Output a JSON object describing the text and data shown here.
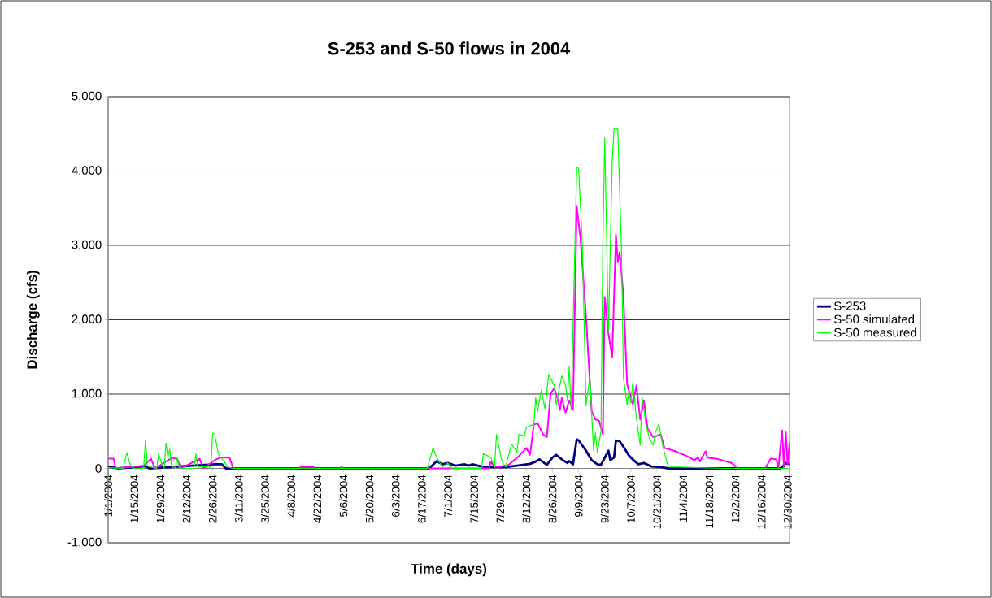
{
  "chart_data": {
    "type": "line",
    "title": "S-253 and S-50 flows in 2004",
    "xlabel": "Time (days)",
    "ylabel": "Discharge (cfs)",
    "xlim": [
      "2004-01-01",
      "2004-12-31"
    ],
    "xticks": [
      {
        "value": "2004-01-01",
        "label": "1/1/2004"
      },
      {
        "value": "2004-01-15",
        "label": "1/15/2004"
      },
      {
        "value": "2004-01-29",
        "label": "1/29/2004"
      },
      {
        "value": "2004-02-12",
        "label": "2/12/2004"
      },
      {
        "value": "2004-02-26",
        "label": "2/26/2004"
      },
      {
        "value": "2004-03-11",
        "label": "3/11/2004"
      },
      {
        "value": "2004-03-25",
        "label": "3/25/2004"
      },
      {
        "value": "2004-04-08",
        "label": "4/8/2004"
      },
      {
        "value": "2004-04-22",
        "label": "4/22/2004"
      },
      {
        "value": "2004-05-06",
        "label": "5/6/2004"
      },
      {
        "value": "2004-05-20",
        "label": "5/20/2004"
      },
      {
        "value": "2004-06-03",
        "label": "6/3/2004"
      },
      {
        "value": "2004-06-17",
        "label": "6/17/2004"
      },
      {
        "value": "2004-07-01",
        "label": "7/1/2004"
      },
      {
        "value": "2004-07-15",
        "label": "7/15/2004"
      },
      {
        "value": "2004-07-29",
        "label": "7/29/2004"
      },
      {
        "value": "2004-08-12",
        "label": "8/12/2004"
      },
      {
        "value": "2004-08-26",
        "label": "8/26/2004"
      },
      {
        "value": "2004-09-09",
        "label": "9/9/2004"
      },
      {
        "value": "2004-09-23",
        "label": "9/23/2004"
      },
      {
        "value": "2004-10-07",
        "label": "10/7/2004"
      },
      {
        "value": "2004-10-21",
        "label": "10/21/2004"
      },
      {
        "value": "2004-11-04",
        "label": "11/4/2004"
      },
      {
        "value": "2004-11-18",
        "label": "11/18/2004"
      },
      {
        "value": "2004-12-02",
        "label": "12/2/2004"
      },
      {
        "value": "2004-12-16",
        "label": "12/16/2004"
      },
      {
        "value": "2004-12-30",
        "label": "12/30/2004"
      }
    ],
    "ylim": [
      -1000,
      5000
    ],
    "yticks": [
      {
        "value": -1000,
        "label": "-1,000"
      },
      0,
      {
        "value": 1000,
        "label": "1,000"
      },
      {
        "value": 2000,
        "label": "2,000"
      },
      {
        "value": 3000,
        "label": "3,000"
      },
      {
        "value": 4000,
        "label": "4,000"
      },
      {
        "value": 5000,
        "label": "5,000"
      }
    ],
    "grid": "y",
    "legend": "right",
    "marker": "none",
    "line_style": "solid",
    "series": [
      {
        "name": "S-253",
        "color": "#000080",
        "x": [
          "2004-01-01",
          "2004-01-06",
          "2004-01-21",
          "2004-01-23",
          "2004-02-27",
          "2004-03-02",
          "2004-03-04",
          "2004-06-21",
          "2004-06-25",
          "2004-06-28",
          "2004-07-01",
          "2004-07-05",
          "2004-07-10",
          "2004-07-12",
          "2004-07-14",
          "2004-07-19",
          "2004-07-23",
          "2004-08-01",
          "2004-08-07",
          "2004-08-14",
          "2004-08-17",
          "2004-08-19",
          "2004-08-23",
          "2004-08-26",
          "2004-08-28",
          "2004-08-31",
          "2004-09-03",
          "2004-09-04",
          "2004-09-06",
          "2004-09-08",
          "2004-09-09",
          "2004-09-13",
          "2004-09-16",
          "2004-09-19",
          "2004-09-21",
          "2004-09-25",
          "2004-09-26",
          "2004-09-28",
          "2004-09-29",
          "2004-10-01",
          "2004-10-03",
          "2004-10-06",
          "2004-10-08",
          "2004-10-11",
          "2004-10-14",
          "2004-10-18",
          "2004-10-23",
          "2004-10-27",
          "2004-12-26",
          "2004-12-27",
          "2004-12-29",
          "2004-12-31"
        ],
        "values": [
          29,
          0,
          29,
          0,
          55,
          55,
          0,
          0,
          99,
          55,
          73,
          37,
          55,
          37,
          55,
          26,
          18,
          18,
          37,
          62,
          92,
          121,
          48,
          146,
          183,
          121,
          73,
          99,
          55,
          392,
          377,
          238,
          110,
          55,
          48,
          238,
          110,
          146,
          377,
          366,
          293,
          172,
          121,
          55,
          73,
          26,
          18,
          0,
          0,
          18,
          73,
          55
        ]
      },
      {
        "name": "S-50 simulated",
        "color": "#ff00ff",
        "x": [
          "2004-01-01",
          "2004-01-04",
          "2004-01-05",
          "2004-01-20",
          "2004-01-24",
          "2004-01-26",
          "2004-02-04",
          "2004-02-07",
          "2004-02-09",
          "2004-02-19",
          "2004-02-21",
          "2004-02-27",
          "2004-03-01",
          "2004-03-06",
          "2004-03-08",
          "2004-04-12",
          "2004-04-13",
          "2004-04-20",
          "2004-04-21",
          "2004-05-04",
          "2004-05-05",
          "2004-05-06",
          "2004-07-23",
          "2004-07-24",
          "2004-07-26",
          "2004-08-02",
          "2004-08-08",
          "2004-08-12",
          "2004-08-14",
          "2004-08-16",
          "2004-08-18",
          "2004-08-21",
          "2004-08-23",
          "2004-08-25",
          "2004-08-27",
          "2004-08-29",
          "2004-08-30",
          "2004-08-31",
          "2004-09-02",
          "2004-09-04",
          "2004-09-06",
          "2004-09-08",
          "2004-09-10",
          "2004-09-13",
          "2004-09-15",
          "2004-09-16",
          "2004-09-18",
          "2004-09-20",
          "2004-09-22",
          "2004-09-23",
          "2004-09-25",
          "2004-09-27",
          "2004-09-29",
          "2004-09-30",
          "2004-10-01",
          "2004-10-03",
          "2004-10-05",
          "2004-10-08",
          "2004-10-10",
          "2004-10-12",
          "2004-10-14",
          "2004-10-16",
          "2004-10-19",
          "2004-10-23",
          "2004-10-25",
          "2004-10-30",
          "2004-11-06",
          "2004-11-10",
          "2004-11-12",
          "2004-11-13",
          "2004-11-16",
          "2004-11-17",
          "2004-11-22",
          "2004-11-30",
          "2004-12-03",
          "2004-12-18",
          "2004-12-21",
          "2004-12-24",
          "2004-12-25",
          "2004-12-27",
          "2004-12-28",
          "2004-12-29",
          "2004-12-30",
          "2004-12-31"
        ],
        "values": [
          130,
          130,
          0,
          36,
          130,
          0,
          138,
          130,
          0,
          130,
          0,
          110,
          146,
          146,
          0,
          0,
          20,
          20,
          0,
          0,
          20,
          0,
          0,
          92,
          18,
          37,
          165,
          275,
          183,
          586,
          611,
          457,
          421,
          1006,
          1080,
          915,
          787,
          952,
          750,
          915,
          787,
          3532,
          3093,
          2031,
          1190,
          769,
          659,
          640,
          457,
          2306,
          1812,
          1500,
          3148,
          2771,
          2910,
          2324,
          1135,
          860,
          1116,
          659,
          915,
          531,
          421,
          457,
          275,
          238,
          165,
          110,
          146,
          92,
          231,
          146,
          128,
          73,
          0,
          0,
          135,
          121,
          0,
          512,
          18,
          487,
          55,
          348
        ]
      },
      {
        "name": "S-50 measured",
        "color": "#00ff00",
        "x": [
          "2004-01-01",
          "2004-01-09",
          "2004-01-11",
          "2004-01-13",
          "2004-01-15",
          "2004-01-20",
          "2004-01-21",
          "2004-01-22",
          "2004-01-27",
          "2004-01-28",
          "2004-01-30",
          "2004-01-31",
          "2004-02-01",
          "2004-02-02",
          "2004-02-03",
          "2004-02-04",
          "2004-02-06",
          "2004-02-07",
          "2004-02-08",
          "2004-02-10",
          "2004-02-16",
          "2004-02-17",
          "2004-02-18",
          "2004-02-20",
          "2004-02-25",
          "2004-02-26",
          "2004-02-27",
          "2004-02-29",
          "2004-03-01",
          "2004-03-03",
          "2004-03-05",
          "2004-03-08",
          "2004-06-20",
          "2004-06-23",
          "2004-06-25",
          "2004-06-28",
          "2004-07-01",
          "2004-07-03",
          "2004-07-19",
          "2004-07-20",
          "2004-07-24",
          "2004-07-26",
          "2004-07-27",
          "2004-07-30",
          "2004-08-01",
          "2004-08-04",
          "2004-08-07",
          "2004-08-08",
          "2004-08-11",
          "2004-08-12",
          "2004-08-15",
          "2004-08-16",
          "2004-08-17",
          "2004-08-18",
          "2004-08-20",
          "2004-08-22",
          "2004-08-24",
          "2004-08-27",
          "2004-08-28",
          "2004-08-31",
          "2004-09-02",
          "2004-09-03",
          "2004-09-04",
          "2004-09-05",
          "2004-09-08",
          "2004-09-09",
          "2004-09-11",
          "2004-09-13",
          "2004-09-15",
          "2004-09-17",
          "2004-09-18",
          "2004-09-19",
          "2004-09-21",
          "2004-09-22",
          "2004-09-23",
          "2004-09-25",
          "2004-09-27",
          "2004-09-28",
          "2004-09-30",
          "2004-10-02",
          "2004-10-03",
          "2004-10-05",
          "2004-10-06",
          "2004-10-07",
          "2004-10-08",
          "2004-10-10",
          "2004-10-12",
          "2004-10-13",
          "2004-10-15",
          "2004-10-17",
          "2004-10-19",
          "2004-10-20",
          "2004-10-22",
          "2004-10-24",
          "2004-10-27",
          "2004-11-02",
          "2004-11-26",
          "2004-12-31"
        ],
        "values": [
          10,
          0,
          210,
          40,
          0,
          0,
          385,
          30,
          0,
          195,
          40,
          0,
          340,
          150,
          260,
          20,
          10,
          145,
          20,
          0,
          0,
          195,
          20,
          20,
          20,
          475,
          470,
          200,
          150,
          100,
          20,
          0,
          0,
          275,
          146,
          20,
          73,
          0,
          0,
          200,
          146,
          20,
          457,
          92,
          20,
          330,
          220,
          457,
          440,
          549,
          586,
          567,
          952,
          758,
          1054,
          805,
          1263,
          1116,
          860,
          1244,
          1116,
          915,
          1373,
          787,
          4052,
          4044,
          3020,
          842,
          1244,
          238,
          476,
          220,
          494,
          3020,
          4447,
          1848,
          4117,
          4575,
          4564,
          2910,
          1226,
          860,
          1043,
          878,
          1153,
          677,
          311,
          970,
          604,
          403,
          311,
          476,
          597,
          311,
          18,
          18,
          0,
          0
        ]
      }
    ]
  }
}
